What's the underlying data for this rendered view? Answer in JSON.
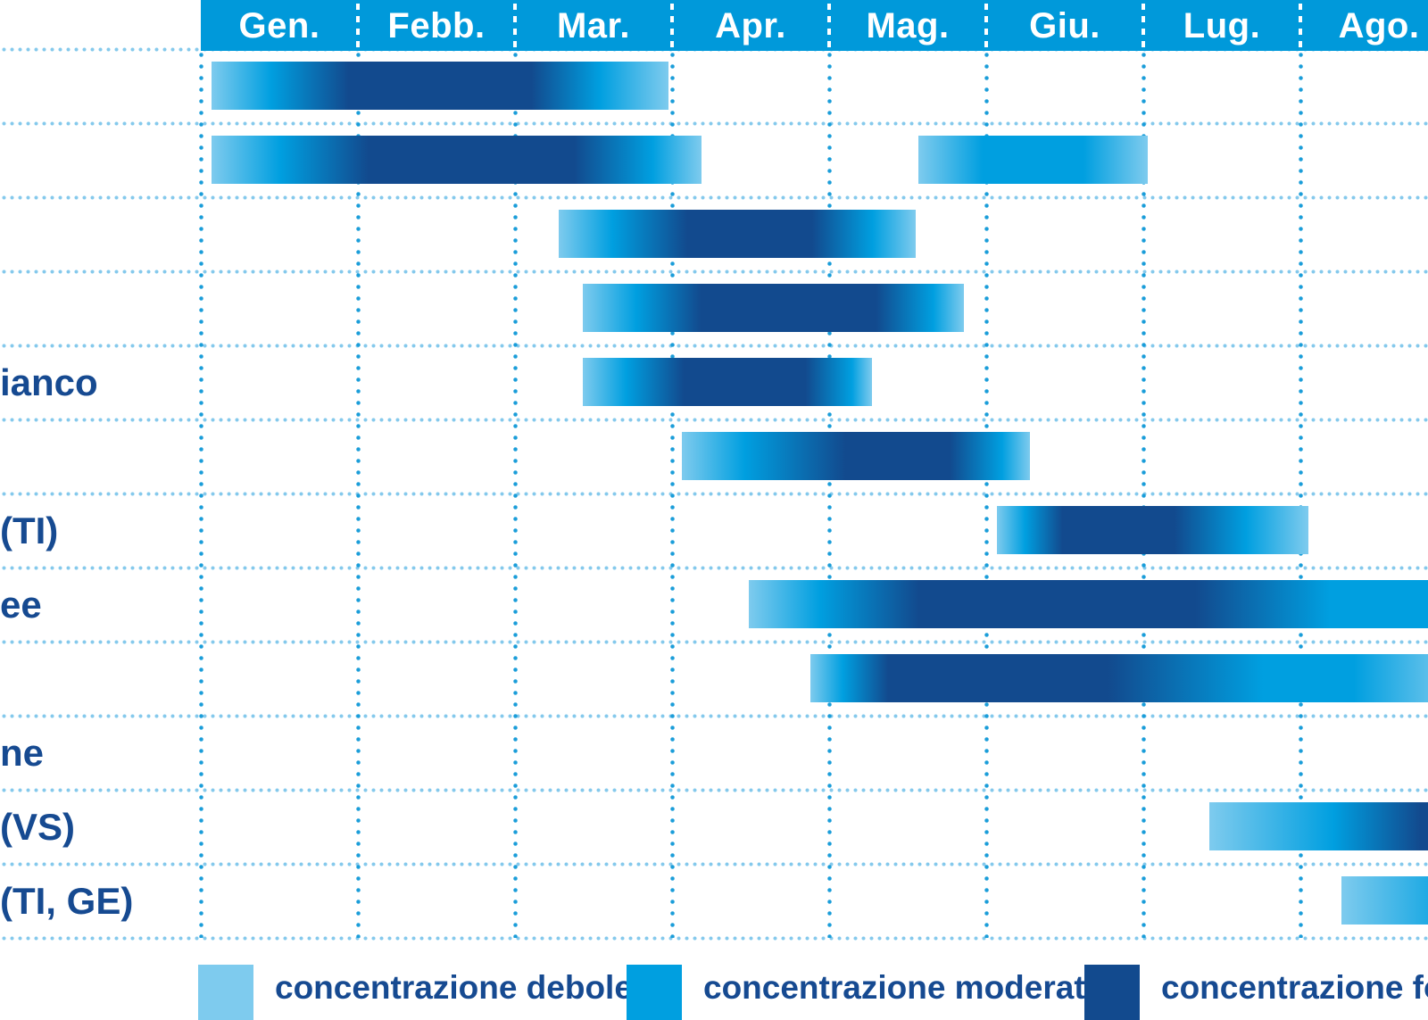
{
  "colors": {
    "debole": "#7ecbee",
    "moderata": "#009fe0",
    "forte": "#124a8e",
    "header_bg": "#0099da",
    "header_text": "#ffffff",
    "label_text": "#164a91",
    "grid_dots_horizontal": "#85c9ec",
    "grid_dots_vertical": "#1a9dd9"
  },
  "months": [
    "Gen.",
    "Febb.",
    "Mar.",
    "Apr.",
    "Mag.",
    "Giu.",
    "Lug.",
    "Ago."
  ],
  "legend": {
    "items": [
      {
        "label": "concentrazione debole",
        "level": "debole"
      },
      {
        "label": "concentrazione moderata",
        "level": "moderata"
      },
      {
        "label": "concentrazione forte",
        "level": "forte"
      }
    ]
  },
  "chart_data": {
    "type": "bar",
    "subtype": "gantt-pollen-calendar",
    "x_axis": {
      "unit": "month",
      "tick_labels": [
        "Gen.",
        "Febb.",
        "Mar.",
        "Apr.",
        "Mag.",
        "Giu.",
        "Lug.",
        "Ago."
      ],
      "note": "calendar is cropped at the right edge after Ago.; left row-label column is cropped showing only label fragments"
    },
    "intensity_levels": [
      "debole",
      "moderata",
      "forte"
    ],
    "rows": [
      {
        "label": "",
        "bars": [
          {
            "start": 1.07,
            "end": 3.98,
            "cut": false,
            "stops": [
              [
                0,
                "debole"
              ],
              [
                0.13,
                "moderata"
              ],
              [
                0.3,
                "forte"
              ],
              [
                0.7,
                "forte"
              ],
              [
                0.85,
                "moderata"
              ],
              [
                1,
                "debole"
              ]
            ]
          }
        ]
      },
      {
        "label": "",
        "bars": [
          {
            "start": 1.07,
            "end": 4.19,
            "cut": false,
            "stops": [
              [
                0,
                "debole"
              ],
              [
                0.14,
                "moderata"
              ],
              [
                0.32,
                "forte"
              ],
              [
                0.74,
                "forte"
              ],
              [
                0.9,
                "moderata"
              ],
              [
                1,
                "debole"
              ]
            ]
          },
          {
            "start": 5.57,
            "end": 7.03,
            "cut": false,
            "stops": [
              [
                0,
                "debole"
              ],
              [
                0.28,
                "moderata"
              ],
              [
                0.72,
                "moderata"
              ],
              [
                1,
                "debole"
              ]
            ]
          }
        ]
      },
      {
        "label": "",
        "bars": [
          {
            "start": 3.28,
            "end": 5.55,
            "cut": false,
            "stops": [
              [
                0,
                "debole"
              ],
              [
                0.15,
                "moderata"
              ],
              [
                0.36,
                "forte"
              ],
              [
                0.71,
                "forte"
              ],
              [
                0.88,
                "moderata"
              ],
              [
                1,
                "debole"
              ]
            ]
          }
        ]
      },
      {
        "label": "",
        "bars": [
          {
            "start": 3.43,
            "end": 5.86,
            "cut": false,
            "stops": [
              [
                0,
                "debole"
              ],
              [
                0.14,
                "moderata"
              ],
              [
                0.31,
                "forte"
              ],
              [
                0.77,
                "forte"
              ],
              [
                0.92,
                "moderata"
              ],
              [
                1,
                "debole"
              ]
            ]
          }
        ]
      },
      {
        "label": "ianco",
        "bars": [
          {
            "start": 3.43,
            "end": 5.27,
            "cut": false,
            "stops": [
              [
                0,
                "debole"
              ],
              [
                0.15,
                "moderata"
              ],
              [
                0.35,
                "forte"
              ],
              [
                0.77,
                "forte"
              ],
              [
                0.93,
                "moderata"
              ],
              [
                1,
                "debole"
              ]
            ]
          }
        ]
      },
      {
        "label": "",
        "bars": [
          {
            "start": 4.06,
            "end": 6.28,
            "cut": false,
            "stops": [
              [
                0,
                "debole"
              ],
              [
                0.18,
                "moderata"
              ],
              [
                0.47,
                "forte"
              ],
              [
                0.77,
                "forte"
              ],
              [
                0.92,
                "moderata"
              ],
              [
                1,
                "debole"
              ]
            ]
          }
        ]
      },
      {
        "label": "(TI)",
        "bars": [
          {
            "start": 6.07,
            "end": 8.05,
            "cut": false,
            "stops": [
              [
                0,
                "debole"
              ],
              [
                0.09,
                "moderata"
              ],
              [
                0.21,
                "forte"
              ],
              [
                0.57,
                "forte"
              ],
              [
                0.8,
                "moderata"
              ],
              [
                1,
                "debole"
              ]
            ]
          }
        ]
      },
      {
        "label": "ee",
        "bars": [
          {
            "start": 4.49,
            "end": 9.0,
            "cut": true,
            "stops": [
              [
                0,
                "debole"
              ],
              [
                0.1,
                "moderata"
              ],
              [
                0.24,
                "forte"
              ],
              [
                0.63,
                "forte"
              ],
              [
                0.82,
                "moderata"
              ],
              [
                1,
                "moderata"
              ]
            ]
          }
        ]
      },
      {
        "label": "",
        "bars": [
          {
            "start": 4.88,
            "end": 9.0,
            "cut": true,
            "stops": [
              [
                0,
                "debole"
              ],
              [
                0.05,
                "moderata"
              ],
              [
                0.12,
                "forte"
              ],
              [
                0.46,
                "forte"
              ],
              [
                0.7,
                "moderata"
              ],
              [
                0.84,
                "moderata"
              ],
              [
                1,
                "debole"
              ]
            ]
          }
        ]
      },
      {
        "label": "ne",
        "bars": []
      },
      {
        "label": "(VS)",
        "bars": [
          {
            "start": 7.42,
            "end": 9.0,
            "cut": true,
            "stops": [
              [
                0,
                "debole"
              ],
              [
                0.5,
                "moderata"
              ],
              [
                0.85,
                "forte"
              ],
              [
                1,
                "forte"
              ]
            ]
          }
        ]
      },
      {
        "label": "(TI, GE)",
        "bars": [
          {
            "start": 8.26,
            "end": 9.0,
            "cut": true,
            "stops": [
              [
                0,
                "debole"
              ],
              [
                1,
                "moderata"
              ]
            ]
          }
        ]
      }
    ]
  }
}
